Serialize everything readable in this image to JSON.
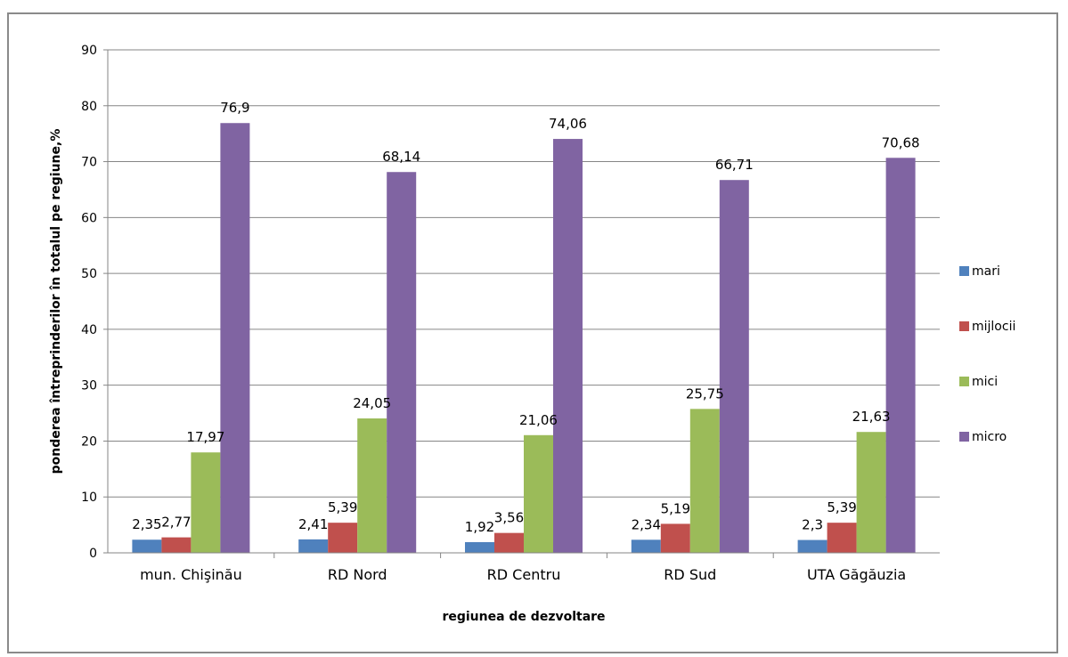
{
  "chart_data": {
    "type": "bar",
    "title": "",
    "xlabel": "regiunea de dezvoltare",
    "ylabel": "ponderea întreprinderilor în totalul pe regiune,%",
    "ylim": [
      0,
      90
    ],
    "yticks": [
      "0",
      "10",
      "20",
      "30",
      "40",
      "50",
      "60",
      "70",
      "80",
      "90"
    ],
    "grid": true,
    "legend_position": "right",
    "categories": [
      "mun. Chişinău",
      "RD Nord",
      "RD Centru",
      "RD Sud",
      "UTA Găgăuzia"
    ],
    "series": [
      {
        "name": "mari",
        "color": "#4F81BD",
        "values": [
          2.35,
          2.41,
          1.92,
          2.34,
          2.3
        ],
        "labels": [
          "2,35",
          "2,41",
          "1,92",
          "2,34",
          "2,3"
        ]
      },
      {
        "name": "mijlocii",
        "color": "#C0504D",
        "values": [
          2.77,
          5.39,
          3.56,
          5.19,
          5.39
        ],
        "labels": [
          "2,77",
          "5,39",
          "3,56",
          "5,19",
          "5,39"
        ]
      },
      {
        "name": "mici",
        "color": "#9BBB59",
        "values": [
          17.97,
          24.05,
          21.06,
          25.75,
          21.63
        ],
        "labels": [
          "17,97",
          "24,05",
          "21,06",
          "25,75",
          "21,63"
        ]
      },
      {
        "name": "micro",
        "color": "#8064A2",
        "values": [
          76.9,
          68.14,
          74.06,
          66.71,
          70.68
        ],
        "labels": [
          "76,9",
          "68,14",
          "74,06",
          "66,71",
          "70,68"
        ]
      }
    ]
  }
}
